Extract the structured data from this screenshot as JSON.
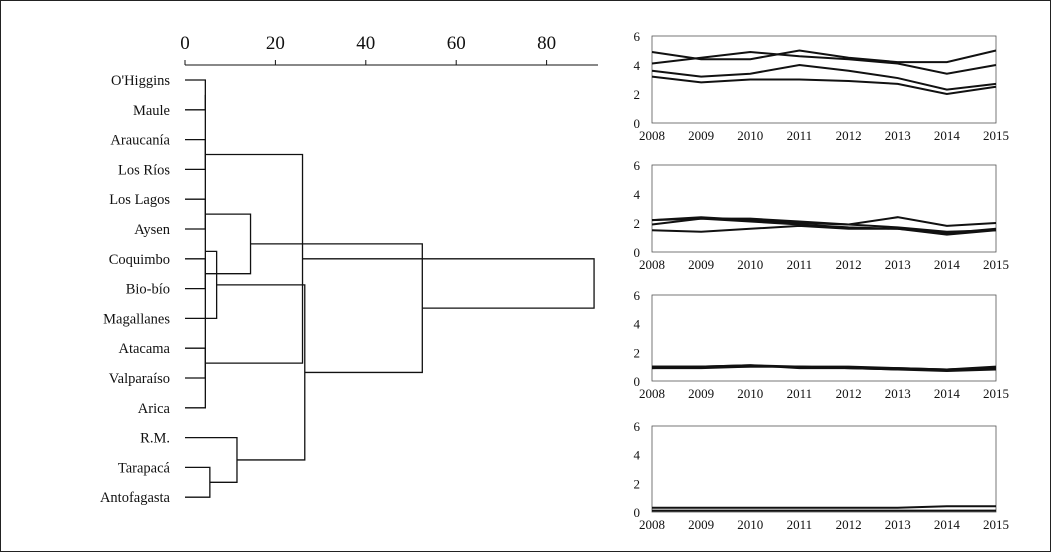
{
  "chart_data": [
    {
      "type": "dendrogram",
      "axis": {
        "ticks": [
          0,
          20,
          40,
          60,
          80
        ],
        "range": [
          0,
          92
        ]
      },
      "leaves": [
        "O'Higgins",
        "Maule",
        "Araucanía",
        "Los Ríos",
        "Los Lagos",
        "Aysen",
        "Coquimbo",
        "Bio-bío",
        "Magallanes",
        "Atacama",
        "Valparaíso",
        "Arica",
        "R.M.",
        "Tarapacá",
        "Antofagasta"
      ],
      "merges": [
        {
          "a": 0,
          "b": 1,
          "height": 4.5
        },
        {
          "a": 2,
          "b": 3,
          "height": 4.5
        },
        {
          "a": 4,
          "b": 5,
          "height": 4.5
        },
        {
          "a": 6,
          "b": 7,
          "height": 4.5
        },
        {
          "a": 9,
          "b": 10,
          "height": 4.5
        },
        {
          "a": 13,
          "b": 14,
          "height": 5.5
        },
        {
          "a": 15,
          "b": 11,
          "height": 4.5
        },
        {
          "a": 8,
          "b": 21,
          "height": 7
        },
        {
          "a": 12,
          "b": 20,
          "height": 11.5
        },
        {
          "a": 17,
          "b": 18,
          "height": 14.5
        },
        {
          "a": 16,
          "b": 19,
          "height": 26
        },
        {
          "a": 22,
          "b": 23,
          "height": 26.5
        },
        {
          "a": 24,
          "b": 26,
          "height": 52.5
        },
        {
          "a": 25,
          "b": 27,
          "height": 90.5
        }
      ]
    },
    {
      "type": "line",
      "x": [
        2008,
        2009,
        2010,
        2011,
        2012,
        2013,
        2014,
        2015
      ],
      "ylim": [
        0,
        6
      ],
      "yticks": [
        0,
        2,
        4,
        6
      ],
      "series": [
        {
          "values": [
            4.9,
            4.4,
            4.4,
            5.0,
            4.5,
            4.2,
            4.2,
            5.0
          ]
        },
        {
          "values": [
            4.1,
            4.5,
            4.9,
            4.6,
            4.4,
            4.1,
            3.4,
            4.0
          ]
        },
        {
          "values": [
            3.6,
            3.2,
            3.4,
            4.0,
            3.6,
            3.1,
            2.3,
            2.7
          ]
        },
        {
          "values": [
            3.2,
            2.8,
            3.0,
            3.0,
            2.9,
            2.7,
            2.0,
            2.5
          ]
        }
      ]
    },
    {
      "type": "line",
      "x": [
        2008,
        2009,
        2010,
        2011,
        2012,
        2013,
        2014,
        2015
      ],
      "ylim": [
        0,
        6
      ],
      "yticks": [
        0,
        2,
        4,
        6
      ],
      "series": [
        {
          "values": [
            2.2,
            2.3,
            2.3,
            2.1,
            1.9,
            2.4,
            1.8,
            2.0
          ]
        },
        {
          "values": [
            2.2,
            2.4,
            2.2,
            2.0,
            1.9,
            1.7,
            1.4,
            1.5
          ]
        },
        {
          "values": [
            1.9,
            2.3,
            2.1,
            1.9,
            1.7,
            1.6,
            1.3,
            1.6
          ]
        },
        {
          "values": [
            1.5,
            1.4,
            1.6,
            1.8,
            1.6,
            1.6,
            1.2,
            1.5
          ]
        }
      ]
    },
    {
      "type": "line",
      "x": [
        2008,
        2009,
        2010,
        2011,
        2012,
        2013,
        2014,
        2015
      ],
      "ylim": [
        0,
        6
      ],
      "yticks": [
        0,
        2,
        4,
        6
      ],
      "series": [
        {
          "values": [
            1.0,
            1.0,
            1.1,
            1.0,
            0.9,
            0.9,
            0.8,
            1.0
          ]
        },
        {
          "values": [
            0.9,
            1.0,
            1.0,
            1.0,
            1.0,
            0.9,
            0.8,
            0.9
          ]
        },
        {
          "values": [
            1.0,
            1.0,
            1.1,
            0.9,
            0.9,
            0.8,
            0.8,
            0.9
          ]
        },
        {
          "values": [
            0.9,
            0.9,
            1.0,
            1.0,
            0.9,
            0.8,
            0.7,
            0.8
          ]
        }
      ]
    },
    {
      "type": "line",
      "x": [
        2008,
        2009,
        2010,
        2011,
        2012,
        2013,
        2014,
        2015
      ],
      "ylim": [
        0,
        6
      ],
      "yticks": [
        0,
        2,
        4,
        6
      ],
      "series": [
        {
          "values": [
            0.3,
            0.3,
            0.3,
            0.3,
            0.3,
            0.3,
            0.4,
            0.4
          ]
        },
        {
          "values": [
            0.1,
            0.1,
            0.1,
            0.1,
            0.1,
            0.1,
            0.1,
            0.1
          ]
        }
      ]
    }
  ]
}
